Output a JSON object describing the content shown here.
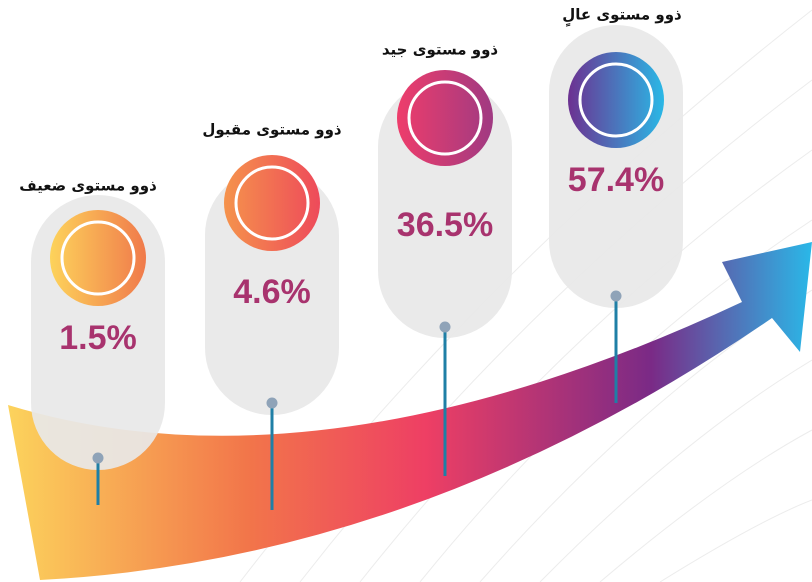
{
  "chart_data": {
    "type": "infographic",
    "categories": [
      "ذوو مستوى ضعيف",
      "ذوو مستوى مقبول",
      "ذوو مستوى جيد",
      "ذوو مستوى عالٍ"
    ],
    "values": [
      1.5,
      4.6,
      36.5,
      57.4
    ],
    "value_labels": [
      "1.5%",
      "4.6%",
      "36.5%",
      "57.4%"
    ]
  }
}
